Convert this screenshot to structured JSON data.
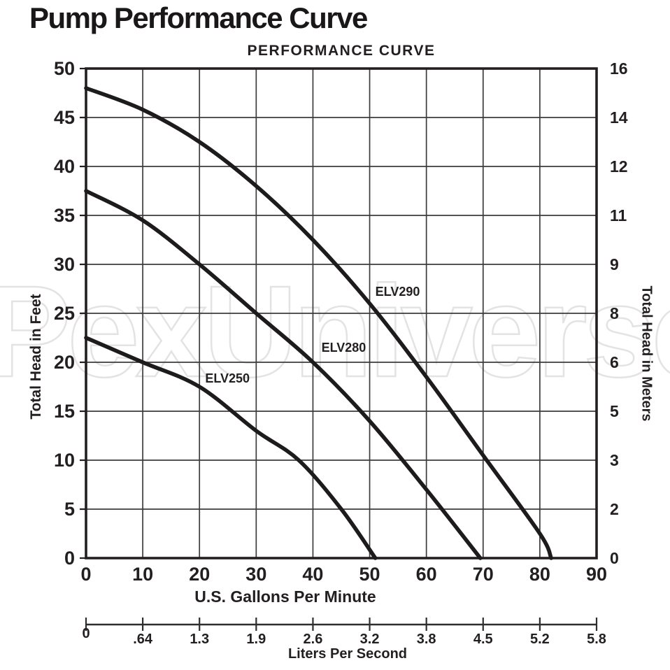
{
  "page_title": "Pump Performance Curve",
  "watermark": "PexUniverse",
  "chart_data": {
    "type": "line",
    "title": "PERFORMANCE CURVE",
    "xlabel": "U.S. Gallons Per Minute",
    "x2label": "Liters Per Second",
    "ylabel_left": "Total Head in Feet",
    "ylabel_right": "Total Head in Meters",
    "xlim": [
      0,
      90
    ],
    "ylim": [
      0,
      50
    ],
    "grid": true,
    "legend_position": "inline-labels",
    "xticks": [
      "0",
      "10",
      "20",
      "30",
      "40",
      "50",
      "60",
      "70",
      "80",
      "90"
    ],
    "xticks_lps": [
      "0",
      ".64",
      "1.3",
      "1.9",
      "2.6",
      "3.2",
      "3.8",
      "4.5",
      "5.2",
      "5.8"
    ],
    "yticks_left": [
      "50",
      "45",
      "40",
      "35",
      "30",
      "25",
      "20",
      "15",
      "10",
      "5",
      "0"
    ],
    "yticks_left_values": [
      50,
      45,
      40,
      35,
      30,
      25,
      20,
      15,
      10,
      5,
      0
    ],
    "yticks_right": [
      "16",
      "14",
      "12",
      "11",
      "9",
      "8",
      "6",
      "5",
      "3",
      "2",
      "0"
    ],
    "series": [
      {
        "name": "ELV250",
        "points": [
          [
            0,
            22.5
          ],
          [
            10,
            20
          ],
          [
            20,
            17.5
          ],
          [
            30,
            13
          ],
          [
            37.5,
            10
          ],
          [
            45,
            5
          ],
          [
            51,
            0
          ]
        ],
        "label_at": [
          21,
          19.1
        ]
      },
      {
        "name": "ELV280",
        "points": [
          [
            0,
            37.5
          ],
          [
            10,
            34.5
          ],
          [
            20,
            30
          ],
          [
            30,
            25
          ],
          [
            40,
            20
          ],
          [
            50,
            14
          ],
          [
            60,
            7
          ],
          [
            69.5,
            0
          ]
        ],
        "label_at": [
          41.5,
          22.2
        ]
      },
      {
        "name": "ELV290",
        "points": [
          [
            0,
            48
          ],
          [
            10,
            45.8
          ],
          [
            20,
            42.5
          ],
          [
            30,
            38
          ],
          [
            40,
            32.5
          ],
          [
            50,
            26
          ],
          [
            60,
            18.5
          ],
          [
            70,
            10.5
          ],
          [
            80,
            2.5
          ],
          [
            82,
            0
          ]
        ],
        "label_at": [
          51,
          27.9
        ]
      }
    ]
  }
}
